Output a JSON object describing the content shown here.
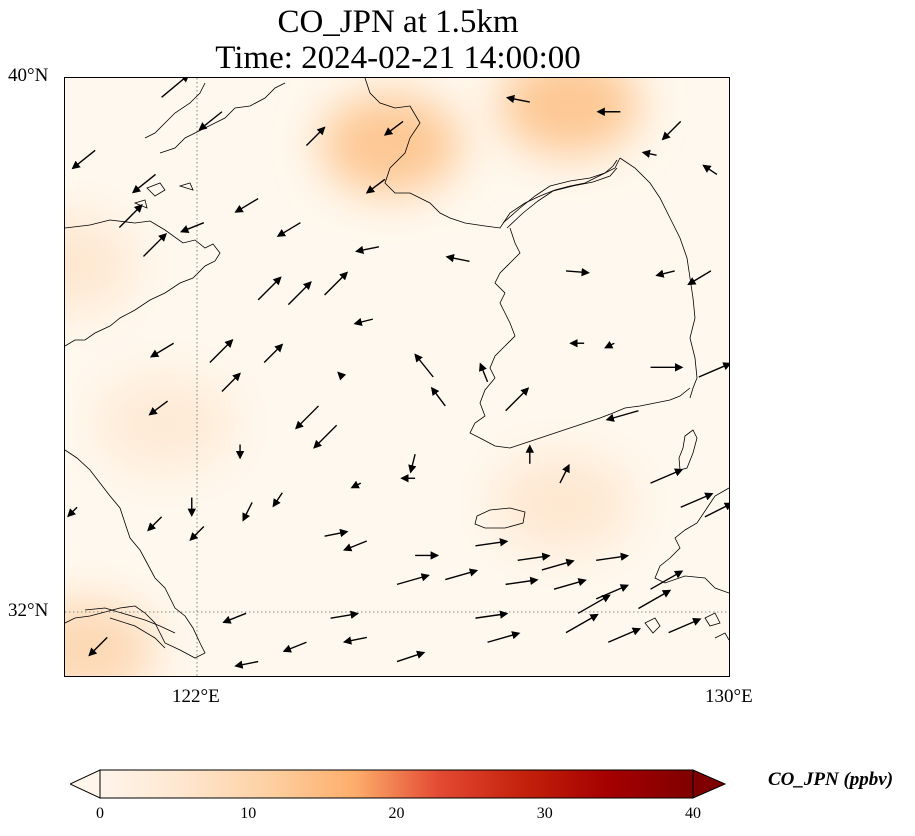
{
  "title": {
    "line1": "CO_JPN at 1.5km",
    "line2": "Time: 2024-02-21 14:00:00"
  },
  "map": {
    "lat_range": [
      31,
      40
    ],
    "lon_range": [
      119,
      130
    ],
    "lat_ticks": [
      {
        "value": 40,
        "label": "40°N"
      },
      {
        "value": 32,
        "label": "32°N"
      }
    ],
    "lon_ticks": [
      {
        "value": 122,
        "label": "122°E"
      },
      {
        "value": 130,
        "label": "130°E"
      }
    ],
    "gridlines": {
      "lat": [
        32
      ],
      "lon": [
        122
      ],
      "style": "dotted"
    },
    "background_color": "#fff8ee",
    "coastline_color": "#000000",
    "concentration_blobs": [
      {
        "lon": 124.9,
        "lat": 39.0,
        "value": 13
      },
      {
        "lon": 127.6,
        "lat": 39.6,
        "value": 13
      },
      {
        "lon": 120.3,
        "lat": 31.4,
        "value": 9
      },
      {
        "lon": 127.5,
        "lat": 33.6,
        "value": 5
      },
      {
        "lon": 121.5,
        "lat": 34.8,
        "value": 4
      },
      {
        "lon": 120.0,
        "lat": 37.2,
        "value": 5
      }
    ]
  },
  "colorbar": {
    "label": "CO_JPN (ppbv)",
    "min": 0,
    "max": 40,
    "ticks": [
      "0",
      "10",
      "20",
      "30",
      "40"
    ],
    "extend": "both",
    "colormap": [
      "#fff5eb",
      "#fee6ce",
      "#fdd0a2",
      "#fdae6b",
      "#e34a33",
      "#c4210c",
      "#a50000",
      "#7f0000"
    ]
  },
  "wind_vectors": [
    {
      "lon": 120.6,
      "lat": 39.6,
      "u": 3,
      "v": 2.5
    },
    {
      "lon": 121.6,
      "lat": 39.3,
      "u": -2.5,
      "v": -2
    },
    {
      "lon": 119.5,
      "lat": 38.5,
      "u": -2.5,
      "v": -2
    },
    {
      "lon": 120.5,
      "lat": 38.0,
      "u": -2.5,
      "v": -2
    },
    {
      "lon": 122.2,
      "lat": 37.5,
      "u": -2.5,
      "v": -1.5
    },
    {
      "lon": 123.0,
      "lat": 38.6,
      "u": 2,
      "v": 2
    },
    {
      "lon": 124.6,
      "lat": 39.1,
      "u": -2,
      "v": -1.5
    },
    {
      "lon": 124.3,
      "lat": 37.9,
      "u": -2,
      "v": -1.5
    },
    {
      "lon": 126.7,
      "lat": 39.5,
      "u": -2.5,
      "v": 0.5
    },
    {
      "lon": 128.2,
      "lat": 39.3,
      "u": -2.5,
      "v": 0
    },
    {
      "lon": 129.2,
      "lat": 39.1,
      "u": -2,
      "v": -2
    },
    {
      "lon": 128.8,
      "lat": 38.4,
      "u": -1.5,
      "v": 0.3
    },
    {
      "lon": 129.8,
      "lat": 38.0,
      "u": -1.5,
      "v": 1
    },
    {
      "lon": 119.9,
      "lat": 36.9,
      "u": 2.5,
      "v": 2.5
    },
    {
      "lon": 120.3,
      "lat": 36.3,
      "u": 2.5,
      "v": 2.5
    },
    {
      "lon": 121.3,
      "lat": 37.0,
      "u": -2.5,
      "v": -1
    },
    {
      "lon": 122.9,
      "lat": 37.0,
      "u": -2.5,
      "v": -1.5
    },
    {
      "lon": 124.2,
      "lat": 36.5,
      "u": -2.5,
      "v": -0.5
    },
    {
      "lon": 125.7,
      "lat": 36.2,
      "u": -2.5,
      "v": 0.5
    },
    {
      "lon": 127.3,
      "lat": 36.0,
      "u": 2.5,
      "v": -0.2
    },
    {
      "lon": 129.1,
      "lat": 36.0,
      "u": -2,
      "v": -0.5
    },
    {
      "lon": 129.7,
      "lat": 36.0,
      "u": -2.5,
      "v": -1.5
    },
    {
      "lon": 122.2,
      "lat": 35.4,
      "u": 2.5,
      "v": 2.5
    },
    {
      "lon": 122.7,
      "lat": 35.3,
      "u": 2.5,
      "v": 2.5
    },
    {
      "lon": 123.3,
      "lat": 35.5,
      "u": 2.5,
      "v": 2.5
    },
    {
      "lon": 124.1,
      "lat": 35.0,
      "u": -2,
      "v": -0.5
    },
    {
      "lon": 120.8,
      "lat": 34.5,
      "u": -2.5,
      "v": -1.5
    },
    {
      "lon": 121.4,
      "lat": 34.1,
      "u": 2.5,
      "v": 2.5
    },
    {
      "lon": 122.3,
      "lat": 34.1,
      "u": 2,
      "v": 2
    },
    {
      "lon": 123.6,
      "lat": 33.8,
      "u": -0.5,
      "v": 0.5
    },
    {
      "lon": 125.1,
      "lat": 33.8,
      "u": -2,
      "v": 2.5
    },
    {
      "lon": 126.0,
      "lat": 33.7,
      "u": -0.8,
      "v": 2
    },
    {
      "lon": 127.6,
      "lat": 34.5,
      "u": -1.5,
      "v": 0
    },
    {
      "lon": 128.1,
      "lat": 34.5,
      "u": -1,
      "v": -0.5
    },
    {
      "lon": 128.7,
      "lat": 34.0,
      "u": 3.5,
      "v": 0
    },
    {
      "lon": 129.5,
      "lat": 33.8,
      "u": 3.5,
      "v": 1.5
    },
    {
      "lon": 120.7,
      "lat": 33.3,
      "u": -2,
      "v": -1.5
    },
    {
      "lon": 121.6,
      "lat": 33.5,
      "u": 2,
      "v": 2
    },
    {
      "lon": 123.2,
      "lat": 33.2,
      "u": -2.5,
      "v": -2.5
    },
    {
      "lon": 123.5,
      "lat": 32.8,
      "u": -2.5,
      "v": -2.5
    },
    {
      "lon": 125.3,
      "lat": 33.2,
      "u": -1.5,
      "v": 2
    },
    {
      "lon": 126.3,
      "lat": 33.1,
      "u": 2.5,
      "v": 2.5
    },
    {
      "lon": 128.5,
      "lat": 33.1,
      "u": -3.5,
      "v": -1
    },
    {
      "lon": 121.9,
      "lat": 32.4,
      "u": 0,
      "v": -1.5
    },
    {
      "lon": 124.8,
      "lat": 32.2,
      "u": -0.5,
      "v": -2
    },
    {
      "lon": 126.7,
      "lat": 32.0,
      "u": 0,
      "v": 2
    },
    {
      "lon": 127.2,
      "lat": 31.6,
      "u": 1,
      "v": 2
    },
    {
      "lon": 128.7,
      "lat": 31.6,
      "u": 3.5,
      "v": 1.5
    },
    {
      "lon": 129.2,
      "lat": 31.1,
      "u": 3.5,
      "v": 1.5
    },
    {
      "lon": 129.6,
      "lat": 30.9,
      "u": 3,
      "v": 1.5
    },
    {
      "lon": 121.1,
      "lat": 31.3,
      "u": 0,
      "v": -2
    },
    {
      "lon": 122.1,
      "lat": 31.2,
      "u": -1,
      "v": -2
    },
    {
      "lon": 122.6,
      "lat": 31.4,
      "u": -1,
      "v": -1.5
    },
    {
      "lon": 123.9,
      "lat": 31.6,
      "u": -1,
      "v": -0.5
    },
    {
      "lon": 124.8,
      "lat": 31.7,
      "u": -1.5,
      "v": 0
    },
    {
      "lon": 119.2,
      "lat": 31.1,
      "u": -1,
      "v": -1
    },
    {
      "lon": 120.6,
      "lat": 30.9,
      "u": -1.5,
      "v": -1.5
    },
    {
      "lon": 121.3,
      "lat": 30.7,
      "u": -1.5,
      "v": -1.5
    },
    {
      "lon": 123.3,
      "lat": 30.5,
      "u": 2.5,
      "v": 0.5
    },
    {
      "lon": 124.0,
      "lat": 30.4,
      "u": -2.5,
      "v": -1
    },
    {
      "lon": 124.8,
      "lat": 30.1,
      "u": 2.5,
      "v": 0
    },
    {
      "lon": 125.8,
      "lat": 30.3,
      "u": 3.5,
      "v": 0.5
    },
    {
      "lon": 126.5,
      "lat": 30.0,
      "u": 3.5,
      "v": 0.5
    },
    {
      "lon": 126.9,
      "lat": 29.8,
      "u": 3.5,
      "v": 1
    },
    {
      "lon": 127.8,
      "lat": 30.0,
      "u": 3.5,
      "v": 0.5
    },
    {
      "lon": 124.5,
      "lat": 29.5,
      "u": 3.5,
      "v": 1
    },
    {
      "lon": 125.3,
      "lat": 29.6,
      "u": 3.5,
      "v": 1
    },
    {
      "lon": 126.3,
      "lat": 29.5,
      "u": 3.5,
      "v": 0.5
    },
    {
      "lon": 127.1,
      "lat": 29.4,
      "u": 3.5,
      "v": 1
    },
    {
      "lon": 127.8,
      "lat": 29.2,
      "u": 3.5,
      "v": 1.5
    },
    {
      "lon": 128.7,
      "lat": 29.4,
      "u": 3.5,
      "v": 2
    },
    {
      "lon": 122.0,
      "lat": 28.9,
      "u": -2.5,
      "v": -1
    },
    {
      "lon": 123.4,
      "lat": 28.8,
      "u": 3,
      "v": 0.5
    },
    {
      "lon": 125.8,
      "lat": 28.8,
      "u": 3.5,
      "v": 0.5
    },
    {
      "lon": 127.5,
      "lat": 28.9,
      "u": 3.5,
      "v": 2
    },
    {
      "lon": 128.5,
      "lat": 29.0,
      "u": 3.5,
      "v": 2
    },
    {
      "lon": 119.7,
      "lat": 28.4,
      "u": -2,
      "v": -2
    },
    {
      "lon": 123.0,
      "lat": 28.3,
      "u": -2.5,
      "v": -1
    },
    {
      "lon": 124.0,
      "lat": 28.4,
      "u": -2.5,
      "v": -0.5
    },
    {
      "lon": 126.0,
      "lat": 28.3,
      "u": 3.5,
      "v": 1
    },
    {
      "lon": 127.3,
      "lat": 28.5,
      "u": 3.5,
      "v": 2
    },
    {
      "lon": 128.0,
      "lat": 28.3,
      "u": 3.5,
      "v": 1.5
    },
    {
      "lon": 129.0,
      "lat": 28.5,
      "u": 3.5,
      "v": 1.5
    },
    {
      "lon": 122.2,
      "lat": 27.9,
      "u": -2.5,
      "v": -0.5
    },
    {
      "lon": 124.5,
      "lat": 27.9,
      "u": 3,
      "v": 1
    }
  ]
}
